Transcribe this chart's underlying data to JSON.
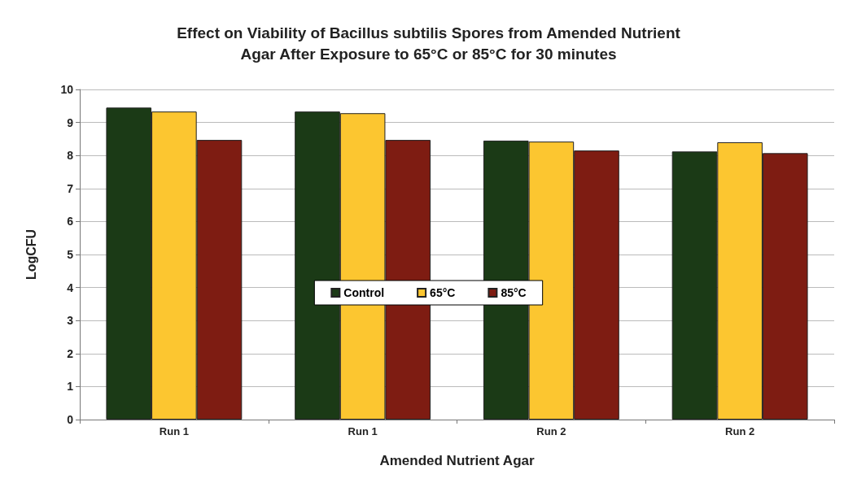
{
  "chart_data": {
    "type": "bar",
    "title": "Effect on Viability of Bacillus subtilis Spores from Amended Nutrient\nAgar After Exposure to 65°C or 85°C for 30 minutes",
    "xlabel": "Amended Nutrient Agar",
    "ylabel": "LogCFU",
    "categories": [
      "Run 1",
      "Run 1",
      "Run 2",
      "Run 2"
    ],
    "series": [
      {
        "name": "Control",
        "color": "#1b3a16",
        "values": [
          9.45,
          9.33,
          8.45,
          8.12
        ]
      },
      {
        "name": "65°C",
        "color": "#fcc630",
        "values": [
          9.33,
          9.28,
          8.42,
          8.4
        ]
      },
      {
        "name": "85°C",
        "color": "#7e1c12",
        "values": [
          8.47,
          8.47,
          8.15,
          8.07
        ]
      }
    ],
    "ylim": [
      0,
      10
    ],
    "yticks": [
      0,
      1,
      2,
      3,
      4,
      5,
      6,
      7,
      8,
      9,
      10
    ],
    "grid": "y",
    "legend": "center"
  }
}
